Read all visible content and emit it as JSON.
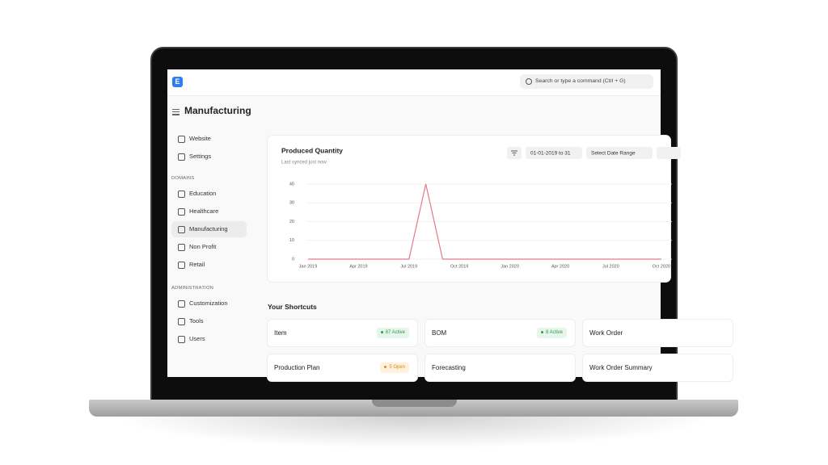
{
  "topbar": {
    "logo": "E",
    "search_placeholder": "Search or type a command (Ctrl + G)"
  },
  "page_title": "Manufacturing",
  "sidebar": {
    "items": [
      {
        "label": "Website"
      },
      {
        "label": "Settings"
      }
    ],
    "sections": [
      {
        "heading": "DOMAINS",
        "items": [
          {
            "label": "Education"
          },
          {
            "label": "Healthcare"
          },
          {
            "label": "Manufacturing",
            "active": true
          },
          {
            "label": "Non Profit"
          },
          {
            "label": "Retail"
          }
        ]
      },
      {
        "heading": "ADMINISTRATION",
        "items": [
          {
            "label": "Customization"
          },
          {
            "label": "Tools"
          },
          {
            "label": "Users"
          }
        ]
      }
    ]
  },
  "chart_controls": [
    "01-01-2019 to 31",
    "Select Date Range"
  ],
  "chart_data": {
    "type": "line",
    "title": "Produced Quantity",
    "subtitle": "Last synced just now",
    "categories": [
      "Jan 2019",
      null,
      null,
      "Apr 2019",
      null,
      null,
      "Jul 2019",
      null,
      null,
      "Oct 2019",
      null,
      null,
      "Jan 2020",
      null,
      null,
      "Apr 2020",
      null,
      null,
      "Jul 2020",
      null,
      null,
      "Oct 2020"
    ],
    "values": [
      0,
      0,
      0,
      0,
      0,
      0,
      0,
      40,
      0,
      0,
      0,
      0,
      0,
      0,
      0,
      0,
      0,
      0,
      0,
      0,
      0,
      0
    ],
    "color": "#e8798a",
    "ylim": [
      0,
      40
    ],
    "yticks": [
      0,
      10,
      20,
      30,
      40
    ],
    "grid": true
  },
  "shortcuts": {
    "title": "Your Shortcuts",
    "items": [
      {
        "label": "Item",
        "badge": "87 Active",
        "tone": "green"
      },
      {
        "label": "BOM",
        "badge": "8 Active",
        "tone": "green"
      },
      {
        "label": "Work Order"
      },
      {
        "label": "Production Plan",
        "badge": "5 Open",
        "tone": "orange"
      },
      {
        "label": "Forecasting"
      },
      {
        "label": "Work Order Summary"
      }
    ]
  }
}
